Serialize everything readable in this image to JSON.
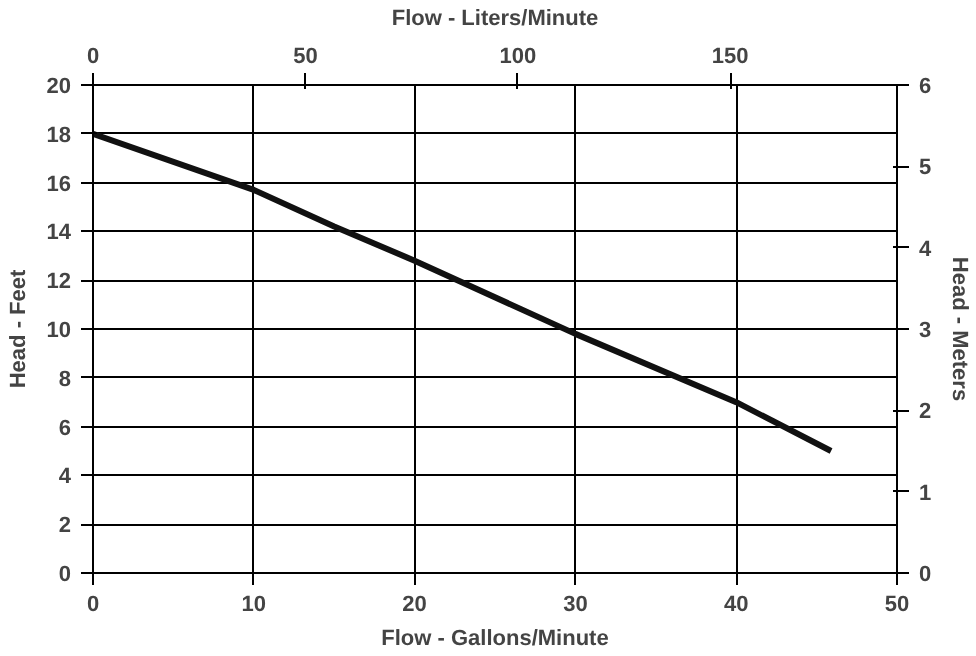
{
  "chart_data": {
    "type": "line",
    "xlabel": "Flow - Gallons/Minute",
    "ylabel": "Head - Feet",
    "y2label": "Head - Meters",
    "x2label": "Flow - Liters/Minute",
    "x": [
      0,
      10,
      15,
      20,
      30,
      40,
      45.9
    ],
    "series": [
      {
        "color": "#111111",
        "values": [
          18,
          15.7,
          14.2,
          12.8,
          9.8,
          7,
          5
        ]
      }
    ],
    "xlim": [
      0,
      50
    ],
    "xticks": [
      0,
      10,
      20,
      30,
      40,
      50
    ],
    "ylim": [
      0,
      20
    ],
    "yticks": [
      0,
      2,
      4,
      6,
      8,
      10,
      12,
      14,
      16,
      18,
      20
    ],
    "y2lim": [
      0,
      6
    ],
    "y2ticks": [
      0,
      1,
      2,
      3,
      4,
      5,
      6
    ],
    "x2lim": [
      0,
      189.27
    ],
    "x2ticks": [
      0,
      50,
      100,
      150
    ],
    "grid": true,
    "marker": "none",
    "line_style": "solid"
  }
}
